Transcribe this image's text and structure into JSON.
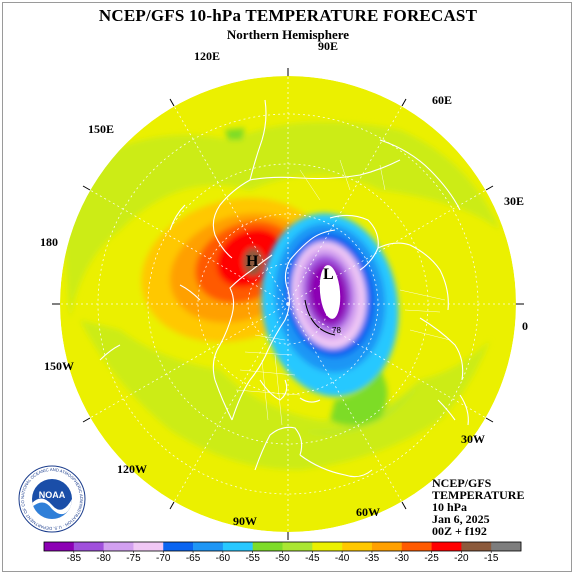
{
  "title": "NCEP/GFS 10-hPa TEMPERATURE FORECAST",
  "subtitle": "Northern Hemisphere",
  "longitude_labels": [
    "90E",
    "120E",
    "60E",
    "150E",
    "30E",
    "180",
    "0",
    "150W",
    "30W",
    "120W",
    "90W",
    "60W"
  ],
  "pressure_centers": {
    "high": "H",
    "low": "L",
    "contour_value": "78"
  },
  "info": {
    "line1": "NCEP/GFS",
    "line2": "TEMPERATURE",
    "line3": "10 hPa",
    "line4": "Jan 6, 2025",
    "line5": "00Z + f192"
  },
  "logo": {
    "text": "NOAA",
    "ring_text": "NATIONAL OCEANIC AND ATMOSPHERIC ADMINISTRATION · U.S. DEPARTMENT OF COMMERCE"
  },
  "colorbar": {
    "labels": [
      "-85",
      "-80",
      "-75",
      "-70",
      "-65",
      "-60",
      "-55",
      "-50",
      "-45",
      "-40",
      "-35",
      "-30",
      "-25",
      "-20",
      "-15"
    ],
    "colors": [
      "#8c00b4",
      "#a050dc",
      "#d2a0f0",
      "#f0c8f5",
      "#0a64f0",
      "#1e96f5",
      "#28c8ff",
      "#7ddc28",
      "#aae632",
      "#ebf000",
      "#ffc800",
      "#ffa000",
      "#ff5a00",
      "#ff0000",
      "#8c5a3c",
      "#7d7d7d"
    ]
  },
  "colors": {
    "ocean_base": "#ebf000",
    "land_lines": "#ffffff"
  }
}
